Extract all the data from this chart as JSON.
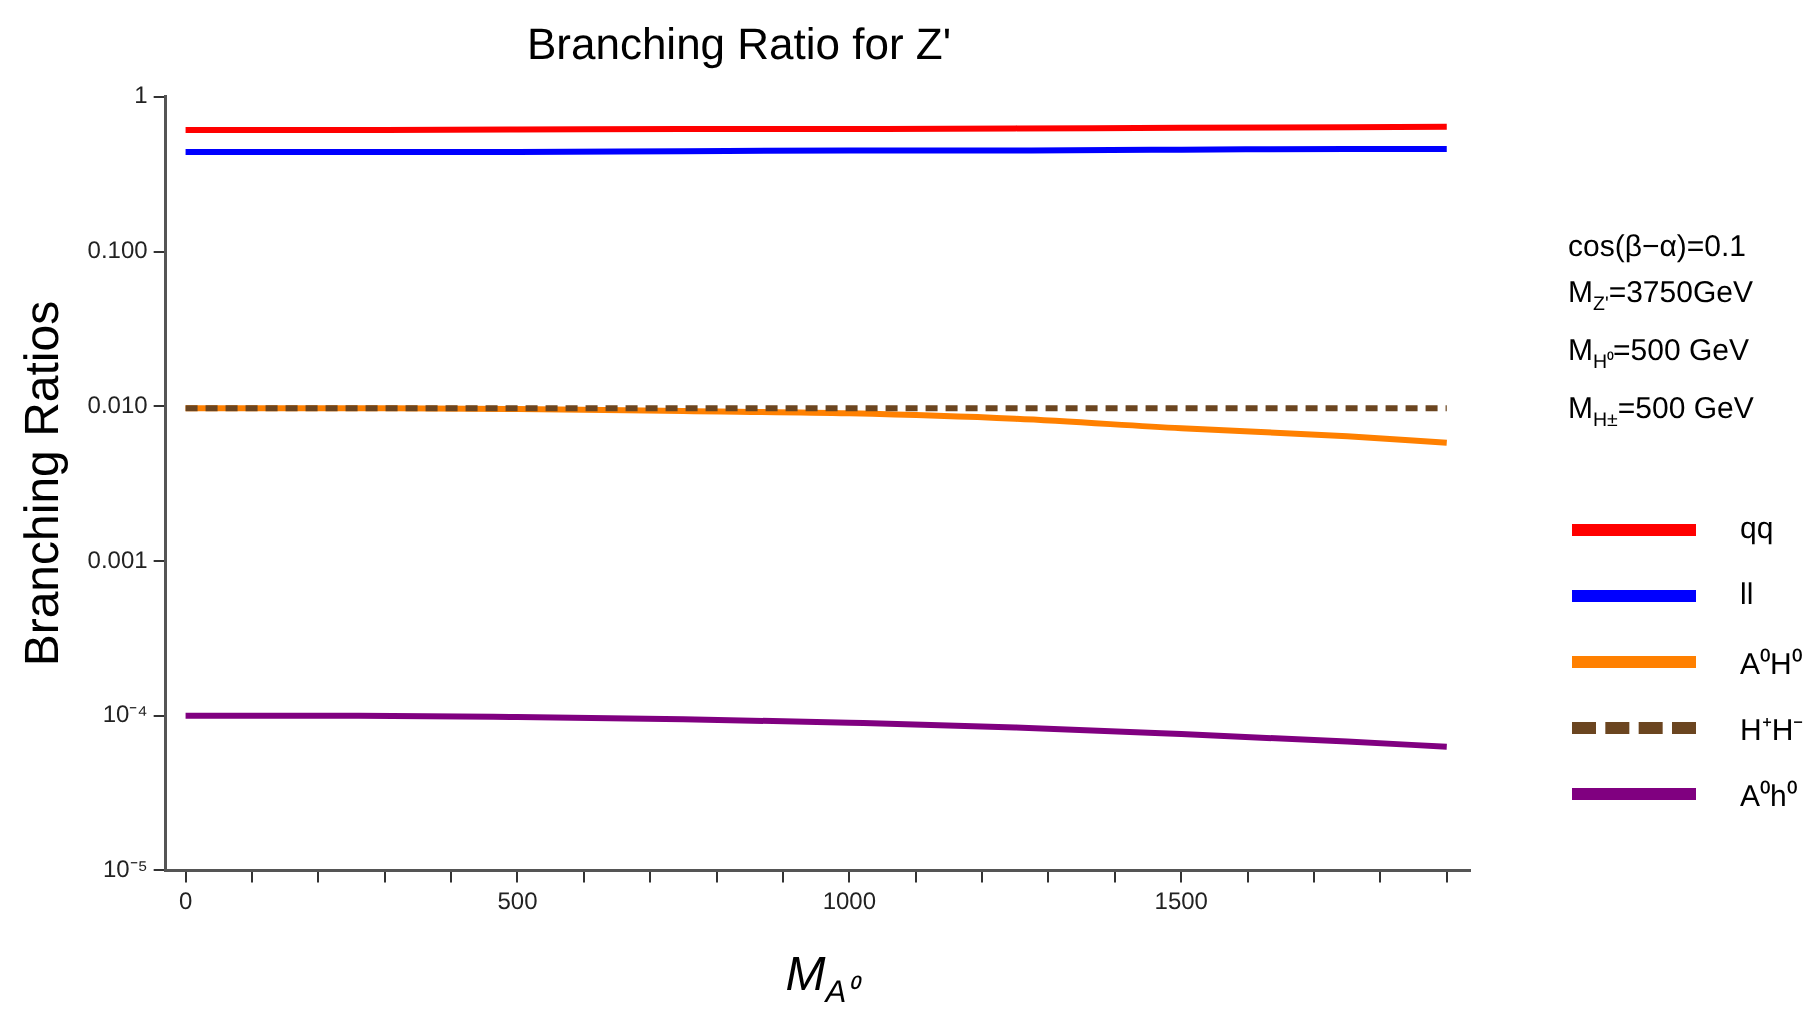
{
  "chart_data": {
    "type": "line",
    "title": "Branching Ratio for Z'",
    "xlabel": "M$_{A⁰}$",
    "ylabel": "Branching Ratios",
    "x": [
      0,
      250,
      500,
      750,
      1000,
      1250,
      1500,
      1750,
      1900
    ],
    "series": [
      {
        "name": "qq",
        "color": "#ff0000",
        "values": [
          0.61,
          0.61,
          0.615,
          0.62,
          0.62,
          0.625,
          0.63,
          0.635,
          0.64
        ]
      },
      {
        "name": "ll",
        "color": "#0000ff",
        "values": [
          0.44,
          0.44,
          0.44,
          0.445,
          0.45,
          0.45,
          0.455,
          0.46,
          0.46
        ]
      },
      {
        "name": "A⁰H⁰",
        "color": "#ff8000",
        "values": [
          0.0097,
          0.0097,
          0.0096,
          0.0093,
          0.009,
          0.0083,
          0.0072,
          0.0064,
          0.0058
        ]
      },
      {
        "name": "H⁺H⁻",
        "color": "#6b4520",
        "line_style": "dashed",
        "values": [
          0.0097,
          0.0097,
          0.0097,
          0.0097,
          0.0097,
          0.0097,
          0.0097,
          0.0097,
          0.0097
        ]
      },
      {
        "name": "A⁰h⁰",
        "color": "#800080",
        "values": [
          0.0001,
          0.0001,
          9.8e-05,
          9.5e-05,
          9e-05,
          8.4e-05,
          7.6e-05,
          6.8e-05,
          6.3e-05
        ]
      }
    ],
    "log": true,
    "grid": false,
    "legend": "right",
    "marker": "none",
    "line_style": "solid",
    "xlim": [
      -30,
      1935
    ],
    "xticks": [
      0,
      {
        "value": 100,
        "label": null
      },
      {
        "value": 200,
        "label": null
      },
      {
        "value": 300,
        "label": null
      },
      {
        "value": 400,
        "label": null
      },
      500,
      {
        "value": 600,
        "label": null
      },
      {
        "value": 700,
        "label": null
      },
      {
        "value": 800,
        "label": null
      },
      {
        "value": 900,
        "label": null
      },
      1000,
      {
        "value": 1100,
        "label": null
      },
      {
        "value": 1200,
        "label": null
      },
      {
        "value": 1300,
        "label": null
      },
      {
        "value": 1400,
        "label": null
      },
      1500,
      {
        "value": 1600,
        "label": null
      },
      {
        "value": 1700,
        "label": null
      },
      {
        "value": 1800,
        "label": null
      },
      {
        "value": 1900,
        "label": null
      }
    ],
    "ylim": [
      1e-05,
      1
    ],
    "yticks": [
      {
        "value": 1e-05,
        "label": "10⁻⁵"
      },
      {
        "value": 0.0001,
        "label": "10⁻⁴"
      },
      {
        "value": 0.001,
        "label": "0.001"
      },
      {
        "value": 0.01,
        "label": "0.010"
      },
      {
        "value": 0.1,
        "label": "0.100"
      },
      1
    ],
    "annotations": [
      "cos(β−α)=0.1",
      "M$_{Z'}$=3750GeV",
      "M$_{H⁰}$=500 GeV",
      "M$_{H±}$=500 GeV"
    ]
  }
}
